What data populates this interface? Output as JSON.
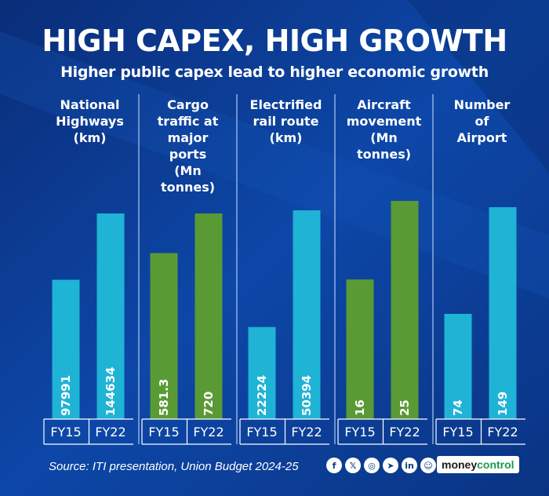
{
  "colors": {
    "background": "#0c3a8a",
    "cyan": "#1fb3d6",
    "green": "#5a9a34",
    "text": "#ffffff"
  },
  "title": "HIGH CAPEX, HIGH GROWTH",
  "subtitle": "Higher public capex lead to higher economic growth",
  "source": "Source: ITI presentation, Union Budget 2024-25",
  "brand": {
    "money": "money",
    "control": "control"
  },
  "social_icons": [
    "facebook-icon",
    "x-icon",
    "instagram-icon",
    "telegram-icon",
    "linkedin-icon",
    "koo-icon"
  ],
  "social_glyphs": [
    "f",
    "𝕏",
    "◎",
    "➤",
    "in",
    "☺"
  ],
  "chart_data": {
    "type": "bar",
    "title": "HIGH CAPEX, HIGH GROWTH",
    "subtitle": "Higher public capex lead to higher economic growth",
    "categories": [
      "FY15",
      "FY22"
    ],
    "panels": [
      {
        "name": "national-highways",
        "label": [
          "National",
          "Highways",
          "(km)"
        ],
        "color": "cyan",
        "values": [
          97991,
          144634
        ],
        "value_labels": [
          "97991",
          "144634"
        ]
      },
      {
        "name": "cargo-traffic",
        "label": [
          "Cargo",
          "traffic at",
          "major",
          "ports",
          "(Mn",
          "tonnes)"
        ],
        "color": "green",
        "values": [
          581.3,
          720
        ],
        "value_labels": [
          "581.3",
          "720"
        ]
      },
      {
        "name": "electrified-rail",
        "label": [
          "Electrified",
          "rail route",
          "(km)"
        ],
        "color": "cyan",
        "values": [
          22224,
          50394
        ],
        "value_labels": [
          "22224",
          "50394"
        ]
      },
      {
        "name": "aircraft-movement",
        "label": [
          "Aircraft",
          "movement",
          "(Mn",
          "tonnes)"
        ],
        "color": "green",
        "values": [
          16,
          25
        ],
        "value_labels": [
          "16",
          "25"
        ]
      },
      {
        "name": "number-of-airport",
        "label": [
          "Number",
          "of",
          "Airport"
        ],
        "color": "cyan",
        "values": [
          74,
          149
        ],
        "value_labels": [
          "74",
          "149"
        ]
      }
    ],
    "xlabel": "",
    "ylabel": "",
    "grid": false,
    "legend": "none"
  }
}
